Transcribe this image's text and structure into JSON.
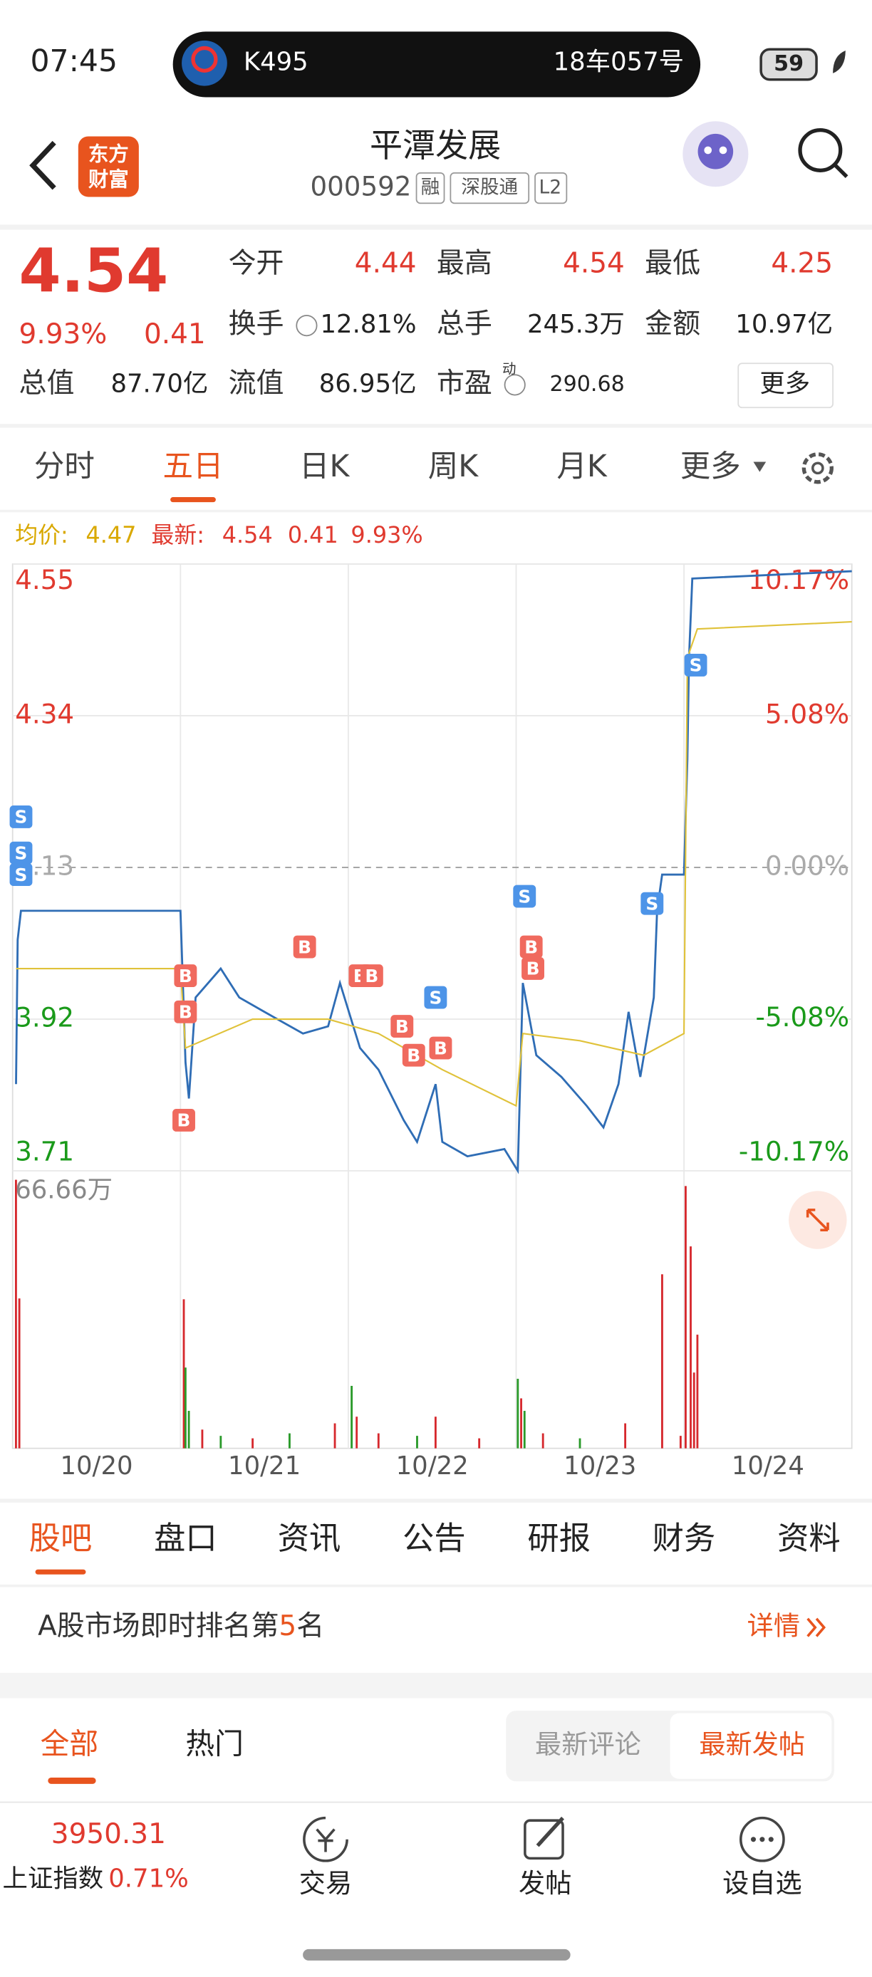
{
  "status_bar": {
    "time": "07:45",
    "train": "K495",
    "seat": "18车057号",
    "battery": 59
  },
  "header": {
    "logo_lines": [
      "东方",
      "财富"
    ],
    "title": "平潭发展",
    "code": "000592",
    "tags": [
      "融",
      "深股通",
      "L2"
    ]
  },
  "quote": {
    "price": "4.54",
    "change_pct": "9.93%",
    "change": "0.41",
    "stats": [
      {
        "label": "今开",
        "value": "4.44"
      },
      {
        "label": "最高",
        "value": "4.54"
      },
      {
        "label": "最低",
        "value": "4.25"
      },
      {
        "label": "换手",
        "value": "12.81%"
      },
      {
        "label": "总手",
        "value": "245.3万"
      },
      {
        "label": "金额",
        "value": "10.97亿"
      },
      {
        "label": "总值",
        "value": "87.70亿"
      },
      {
        "label": "流值",
        "value": "86.95亿"
      },
      {
        "label": "市盈",
        "sup": "动",
        "value": "290.68"
      }
    ],
    "more": "更多"
  },
  "period_tabs": [
    "分时",
    "五日",
    "日K",
    "周K",
    "月K",
    "更多"
  ],
  "chart_legend": {
    "avg_label": "均价:",
    "avg": "4.47",
    "latest_label": "最新:",
    "latest": "4.54",
    "change": "0.41",
    "change_pct": "9.93%"
  },
  "chart_data": {
    "type": "line",
    "categories": [
      "10/20",
      "10/21",
      "10/22",
      "10/23",
      "10/24"
    ],
    "xlim": [
      0,
      5
    ],
    "xticks": [
      1,
      2,
      3,
      4
    ],
    "ylim": [
      3.71,
      4.55
    ],
    "yticks": [
      4.55,
      4.34,
      4.13,
      3.92,
      3.71
    ],
    "reference_line": 4.13,
    "y2lim": [
      -10.17,
      10.17
    ],
    "y2ticks": [
      {
        "value": 10.17,
        "label": "10.17%"
      },
      {
        "value": 5.08,
        "label": "5.08%"
      },
      {
        "value": 0,
        "label": "0.00%"
      },
      {
        "value": -5.08,
        "label": "-5.08%"
      },
      {
        "value": -10.17,
        "label": "-10.17%"
      }
    ],
    "grid": true,
    "series": [
      {
        "color": "#2f6db5",
        "x": [
          0.02,
          0.03,
          0.05,
          1.0,
          1.03,
          1.05,
          1.09,
          1.24,
          1.35,
          1.5,
          1.73,
          1.88,
          1.95,
          2.07,
          2.18,
          2.33,
          2.41,
          2.52,
          2.56,
          2.71,
          2.93,
          3.01,
          3.04,
          3.12,
          3.27,
          3.42,
          3.52,
          3.61,
          3.67,
          3.74,
          3.82,
          3.84,
          3.87,
          4.0,
          4.02,
          4.03,
          4.05,
          5.0
        ],
        "values": [
          3.83,
          4.03,
          4.07,
          4.07,
          3.86,
          3.81,
          3.95,
          3.99,
          3.95,
          3.93,
          3.9,
          3.91,
          3.97,
          3.88,
          3.85,
          3.78,
          3.75,
          3.83,
          3.75,
          3.73,
          3.74,
          3.71,
          3.97,
          3.87,
          3.84,
          3.8,
          3.77,
          3.83,
          3.93,
          3.84,
          3.95,
          4.07,
          4.12,
          4.12,
          4.28,
          4.42,
          4.53,
          4.54
        ]
      },
      {
        "color": "#e0c23a",
        "x": [
          0.02,
          1.0,
          1.03,
          1.43,
          1.88,
          2.18,
          2.56,
          3.0,
          3.04,
          3.38,
          3.76,
          4.0,
          4.02,
          4.08,
          5.0
        ],
        "values": [
          3.99,
          3.99,
          3.88,
          3.92,
          3.92,
          3.9,
          3.85,
          3.8,
          3.9,
          3.89,
          3.87,
          3.9,
          4.42,
          4.46,
          4.47
        ]
      }
    ],
    "trade_markers": [
      {
        "label": "S",
        "x": 0.05,
        "y": 4.2
      },
      {
        "label": "S",
        "x": 0.05,
        "y": 4.15
      },
      {
        "label": "S",
        "x": 0.05,
        "y": 4.12
      },
      {
        "label": "B",
        "x": 1.03,
        "y": 3.98
      },
      {
        "label": "B",
        "x": 1.03,
        "y": 3.93
      },
      {
        "label": "B",
        "x": 1.02,
        "y": 3.78
      },
      {
        "label": "B",
        "x": 1.74,
        "y": 4.02
      },
      {
        "label": "B",
        "x": 2.07,
        "y": 3.98
      },
      {
        "label": "B",
        "x": 2.14,
        "y": 3.98
      },
      {
        "label": "B",
        "x": 2.32,
        "y": 3.91
      },
      {
        "label": "B",
        "x": 2.39,
        "y": 3.87
      },
      {
        "label": "B",
        "x": 2.55,
        "y": 3.88
      },
      {
        "label": "S",
        "x": 2.52,
        "y": 3.95
      },
      {
        "label": "S",
        "x": 3.05,
        "y": 4.09
      },
      {
        "label": "B",
        "x": 3.09,
        "y": 4.02
      },
      {
        "label": "B",
        "x": 3.1,
        "y": 3.99
      },
      {
        "label": "S",
        "x": 3.81,
        "y": 4.08
      },
      {
        "label": "S",
        "x": 4.07,
        "y": 4.41
      }
    ],
    "marker_colors": {
      "B": "#f06a5e",
      "S": "#4d94e8"
    },
    "volume": {
      "label": "66.66万",
      "ylim": [
        0,
        66.66
      ],
      "x": [
        0.02,
        0.04,
        1.02,
        1.03,
        1.05,
        1.13,
        1.24,
        1.43,
        1.65,
        1.92,
        2.02,
        2.05,
        2.18,
        2.41,
        2.52,
        2.78,
        3.01,
        3.03,
        3.05,
        3.16,
        3.38,
        3.65,
        3.87,
        3.98,
        4.01,
        4.04,
        4.06,
        4.08
      ],
      "values": [
        64.5,
        36,
        35.8,
        19.4,
        9,
        4.5,
        3,
        2.4,
        3.6,
        6,
        15,
        7.6,
        3.6,
        3,
        7.6,
        2.4,
        16.7,
        12,
        9,
        3.6,
        2.4,
        6,
        41.8,
        3,
        63,
        48.5,
        18.2,
        27.3
      ],
      "colors": [
        "#d6282d",
        "#d6282d",
        "#d6282d",
        "#2a9a2a",
        "#2a9a2a",
        "#d6282d",
        "#2a9a2a",
        "#d6282d",
        "#2a9a2a",
        "#d6282d",
        "#2a9a2a",
        "#d6282d",
        "#d6282d",
        "#2a9a2a",
        "#d6282d",
        "#d6282d",
        "#2a9a2a",
        "#d6282d",
        "#2a9a2a",
        "#d6282d",
        "#2a9a2a",
        "#d6282d",
        "#d6282d",
        "#d6282d",
        "#d6282d",
        "#d6282d",
        "#d6282d",
        "#d6282d"
      ]
    }
  },
  "section_tabs": [
    "股吧",
    "盘口",
    "资讯",
    "公告",
    "研报",
    "财务",
    "资料"
  ],
  "ranking": {
    "text_before": "A股市场即时排名第",
    "rank": "5",
    "text_after": "名",
    "link": "详情"
  },
  "feed_tabs": [
    "全部",
    "热门"
  ],
  "sort_tabs": [
    "最新评论",
    "最新发帖"
  ],
  "bottom_bar": {
    "index_value": "3950.31",
    "index_name": "上证指数",
    "index_change": "0.71%",
    "items": [
      "交易",
      "发帖",
      "设自选"
    ]
  }
}
